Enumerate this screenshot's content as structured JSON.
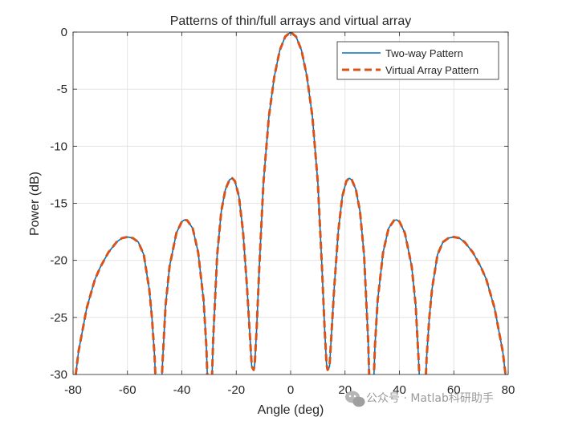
{
  "chart_data": {
    "type": "line",
    "title": "Patterns of thin/full arrays and virtual array",
    "xlabel": "Angle (deg)",
    "ylabel": "Power (dB)",
    "xlim": [
      -80,
      80
    ],
    "ylim": [
      -30,
      0
    ],
    "xticks": [
      -80,
      -60,
      -40,
      -20,
      0,
      20,
      40,
      60,
      80
    ],
    "yticks": [
      0,
      -5,
      -10,
      -15,
      -20,
      -25,
      -30
    ],
    "grid": true,
    "legend_position": "top-right",
    "series": [
      {
        "name": "Two-way Pattern",
        "color": "#0072BD",
        "style": "solid",
        "points": [
          [
            -80,
            -32
          ],
          [
            -79,
            -30
          ],
          [
            -78,
            -28
          ],
          [
            -75,
            -24.2
          ],
          [
            -72,
            -21.7
          ],
          [
            -70,
            -20.6
          ],
          [
            -67,
            -19.3
          ],
          [
            -64,
            -18.4
          ],
          [
            -62,
            -18.05
          ],
          [
            -60,
            -17.95
          ],
          [
            -58,
            -18.05
          ],
          [
            -56,
            -18.4
          ],
          [
            -54,
            -19.5
          ],
          [
            -52,
            -22.5
          ],
          [
            -51,
            -25
          ],
          [
            -50,
            -28.5
          ],
          [
            -49.6,
            -31
          ],
          [
            -48.5,
            -33
          ],
          [
            -47.5,
            -31
          ],
          [
            -47,
            -28.5
          ],
          [
            -46,
            -24
          ],
          [
            -44.5,
            -20.5
          ],
          [
            -42,
            -17.6
          ],
          [
            -40,
            -16.6
          ],
          [
            -39,
            -16.45
          ],
          [
            -38,
            -16.5
          ],
          [
            -36,
            -17.2
          ],
          [
            -34,
            -19.3
          ],
          [
            -32,
            -23.5
          ],
          [
            -31,
            -27.5
          ],
          [
            -30.5,
            -31
          ],
          [
            -29.5,
            -33
          ],
          [
            -29,
            -31
          ],
          [
            -28.5,
            -27
          ],
          [
            -27,
            -19.5
          ],
          [
            -25.5,
            -15.7
          ],
          [
            -24,
            -13.8
          ],
          [
            -22.5,
            -12.95
          ],
          [
            -21.5,
            -12.8
          ],
          [
            -20.5,
            -13.05
          ],
          [
            -19,
            -14.4
          ],
          [
            -17.5,
            -17.5
          ],
          [
            -16,
            -22.5
          ],
          [
            -15,
            -26.5
          ],
          [
            -14.3,
            -29.3
          ],
          [
            -13.6,
            -29.6
          ],
          [
            -13.2,
            -29.1
          ],
          [
            -12.5,
            -26
          ],
          [
            -11.5,
            -20.5
          ],
          [
            -10,
            -13.2
          ],
          [
            -8,
            -7.4
          ],
          [
            -6,
            -3.9
          ],
          [
            -4,
            -1.6
          ],
          [
            -2,
            -0.4
          ],
          [
            0,
            0
          ],
          [
            2,
            -0.4
          ],
          [
            4,
            -1.6
          ],
          [
            6,
            -3.9
          ],
          [
            8,
            -7.4
          ],
          [
            10,
            -13.2
          ],
          [
            11.5,
            -20.5
          ],
          [
            12.5,
            -26
          ],
          [
            13.2,
            -29.1
          ],
          [
            13.6,
            -29.6
          ],
          [
            14.3,
            -29.3
          ],
          [
            15,
            -26.5
          ],
          [
            16,
            -22.5
          ],
          [
            17.5,
            -17.5
          ],
          [
            19,
            -14.4
          ],
          [
            20.5,
            -13.05
          ],
          [
            21.5,
            -12.8
          ],
          [
            22.5,
            -12.95
          ],
          [
            24,
            -13.8
          ],
          [
            25.5,
            -15.7
          ],
          [
            27,
            -19.5
          ],
          [
            28.5,
            -27
          ],
          [
            29,
            -31
          ],
          [
            29.5,
            -33
          ],
          [
            30.5,
            -31
          ],
          [
            31,
            -27.5
          ],
          [
            32,
            -23.5
          ],
          [
            34,
            -19.3
          ],
          [
            36,
            -17.2
          ],
          [
            38,
            -16.5
          ],
          [
            39,
            -16.45
          ],
          [
            40,
            -16.6
          ],
          [
            42,
            -17.6
          ],
          [
            44.5,
            -20.5
          ],
          [
            46,
            -24
          ],
          [
            47,
            -28.5
          ],
          [
            47.5,
            -31
          ],
          [
            48.5,
            -33
          ],
          [
            49.6,
            -31
          ],
          [
            50,
            -28.5
          ],
          [
            51,
            -25
          ],
          [
            52,
            -22.5
          ],
          [
            54,
            -19.5
          ],
          [
            56,
            -18.4
          ],
          [
            58,
            -18.05
          ],
          [
            60,
            -17.95
          ],
          [
            62,
            -18.05
          ],
          [
            64,
            -18.4
          ],
          [
            67,
            -19.3
          ],
          [
            70,
            -20.6
          ],
          [
            72,
            -21.7
          ],
          [
            75,
            -24.2
          ],
          [
            78,
            -28
          ],
          [
            79,
            -30
          ],
          [
            80,
            -32
          ]
        ]
      },
      {
        "name": "Virtual Array Pattern",
        "color": "#D95319",
        "style": "dashed",
        "points": [
          [
            -80,
            -32
          ],
          [
            -79,
            -30
          ],
          [
            -78,
            -28
          ],
          [
            -75,
            -24.2
          ],
          [
            -72,
            -21.7
          ],
          [
            -70,
            -20.6
          ],
          [
            -67,
            -19.3
          ],
          [
            -64,
            -18.4
          ],
          [
            -62,
            -18.05
          ],
          [
            -60,
            -17.95
          ],
          [
            -58,
            -18.05
          ],
          [
            -56,
            -18.4
          ],
          [
            -54,
            -19.5
          ],
          [
            -52,
            -22.5
          ],
          [
            -51,
            -25
          ],
          [
            -50,
            -28.5
          ],
          [
            -49.6,
            -31
          ],
          [
            -48.5,
            -33
          ],
          [
            -47.5,
            -31
          ],
          [
            -47,
            -28.5
          ],
          [
            -46,
            -24
          ],
          [
            -44.5,
            -20.5
          ],
          [
            -42,
            -17.6
          ],
          [
            -40,
            -16.6
          ],
          [
            -39,
            -16.45
          ],
          [
            -38,
            -16.5
          ],
          [
            -36,
            -17.2
          ],
          [
            -34,
            -19.3
          ],
          [
            -32,
            -23.5
          ],
          [
            -31,
            -27.5
          ],
          [
            -30.5,
            -31
          ],
          [
            -29.5,
            -33
          ],
          [
            -29,
            -31
          ],
          [
            -28.5,
            -27
          ],
          [
            -27,
            -19.5
          ],
          [
            -25.5,
            -15.7
          ],
          [
            -24,
            -13.8
          ],
          [
            -22.5,
            -12.95
          ],
          [
            -21.5,
            -12.8
          ],
          [
            -20.5,
            -13.05
          ],
          [
            -19,
            -14.4
          ],
          [
            -17.5,
            -17.5
          ],
          [
            -16,
            -22.5
          ],
          [
            -15,
            -26.5
          ],
          [
            -14.3,
            -29.3
          ],
          [
            -13.6,
            -29.6
          ],
          [
            -13.2,
            -29.1
          ],
          [
            -12.5,
            -26
          ],
          [
            -11.5,
            -20.5
          ],
          [
            -10,
            -13.2
          ],
          [
            -8,
            -7.4
          ],
          [
            -6,
            -3.9
          ],
          [
            -4,
            -1.6
          ],
          [
            -2,
            -0.4
          ],
          [
            0,
            0
          ],
          [
            2,
            -0.4
          ],
          [
            4,
            -1.6
          ],
          [
            6,
            -3.9
          ],
          [
            8,
            -7.4
          ],
          [
            10,
            -13.2
          ],
          [
            11.5,
            -20.5
          ],
          [
            12.5,
            -26
          ],
          [
            13.2,
            -29.1
          ],
          [
            13.6,
            -29.6
          ],
          [
            14.3,
            -29.3
          ],
          [
            15,
            -26.5
          ],
          [
            16,
            -22.5
          ],
          [
            17.5,
            -17.5
          ],
          [
            19,
            -14.4
          ],
          [
            20.5,
            -13.05
          ],
          [
            21.5,
            -12.8
          ],
          [
            22.5,
            -12.95
          ],
          [
            24,
            -13.8
          ],
          [
            25.5,
            -15.7
          ],
          [
            27,
            -19.5
          ],
          [
            28.5,
            -27
          ],
          [
            29,
            -31
          ],
          [
            29.5,
            -33
          ],
          [
            30.5,
            -31
          ],
          [
            31,
            -27.5
          ],
          [
            32,
            -23.5
          ],
          [
            34,
            -19.3
          ],
          [
            36,
            -17.2
          ],
          [
            38,
            -16.5
          ],
          [
            39,
            -16.45
          ],
          [
            40,
            -16.6
          ],
          [
            42,
            -17.6
          ],
          [
            44.5,
            -20.5
          ],
          [
            46,
            -24
          ],
          [
            47,
            -28.5
          ],
          [
            47.5,
            -31
          ],
          [
            48.5,
            -33
          ],
          [
            49.6,
            -31
          ],
          [
            50,
            -28.5
          ],
          [
            51,
            -25
          ],
          [
            52,
            -22.5
          ],
          [
            54,
            -19.5
          ],
          [
            56,
            -18.4
          ],
          [
            58,
            -18.05
          ],
          [
            60,
            -17.95
          ],
          [
            62,
            -18.05
          ],
          [
            64,
            -18.4
          ],
          [
            67,
            -19.3
          ],
          [
            70,
            -20.6
          ],
          [
            72,
            -21.7
          ],
          [
            75,
            -24.2
          ],
          [
            78,
            -28
          ],
          [
            79,
            -30
          ],
          [
            80,
            -32
          ]
        ]
      }
    ]
  },
  "watermark": {
    "text": "公众号 · Matlab科研助手",
    "icon": "wechat-icon"
  }
}
